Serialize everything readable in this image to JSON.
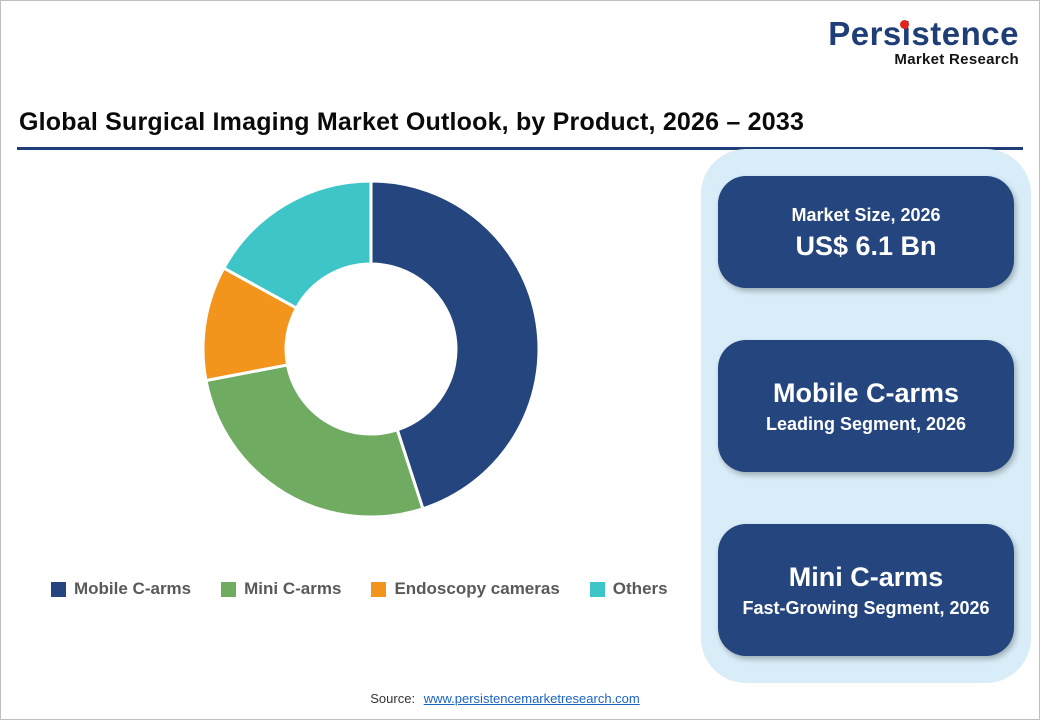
{
  "brand": {
    "name": "Persistence",
    "tagline": "Market Research",
    "colors": {
      "navy": "#1F3E78",
      "red": "#E2261F"
    }
  },
  "header": {
    "title": "Global Surgical Imaging Market Outlook, by Product, 2026 – 2033",
    "underline_color": "#1F3E78"
  },
  "chart_data": {
    "type": "pie",
    "style": "donut",
    "start_angle_deg": 0,
    "direction": "clockwise",
    "categories": [
      "Mobile C-arms",
      "Mini C-arms",
      "Endoscopy cameras",
      "Others"
    ],
    "values": [
      45,
      27,
      11,
      17
    ],
    "colors": [
      "#24457D",
      "#6FAC61",
      "#F3941D",
      "#3EC5C8"
    ],
    "legend_position": "bottom"
  },
  "side_panel": {
    "background": "#D8EDF8",
    "card_background": "#24457D",
    "cards": [
      {
        "line1": "Market Size, 2026",
        "line2": "US$ 6.1 Bn"
      },
      {
        "line1": "Mobile C-arms",
        "line2": "Leading Segment, 2026"
      },
      {
        "line1": "Mini C-arms",
        "line2": "Fast-Growing Segment, 2026"
      }
    ]
  },
  "footer": {
    "source_label": "Source:",
    "source_link": "www.persistencemarketresearch.com"
  }
}
